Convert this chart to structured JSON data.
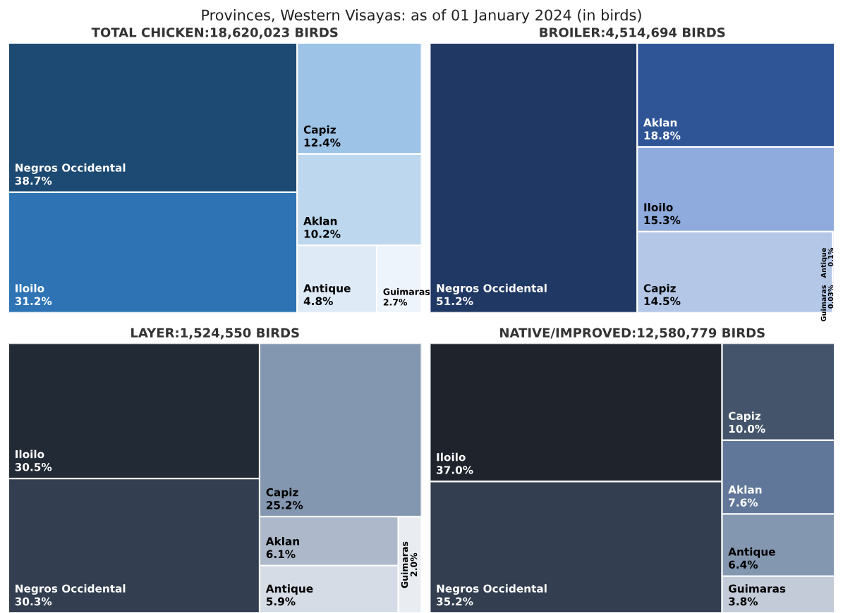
{
  "chart_data": [
    {
      "type": "other",
      "title": "TOTAL CHICKEN:18,620,023 BIRDS",
      "annotations": [
        "Provinces, Western Visayas: as of 01 January 2024 (in birds)"
      ],
      "categories": [
        "Negros Occidental",
        "Iloilo",
        "Capiz",
        "Aklan",
        "Antique",
        "Guimaras"
      ],
      "values": [
        38.7,
        31.2,
        12.4,
        10.2,
        4.8,
        2.7
      ],
      "colors": [
        "#1d4a72",
        "#2e74b5",
        "#9dc3e6",
        "#bdd7ee",
        "#deebf7",
        "#eef4fb"
      ],
      "value_labels": [
        "38.7%",
        "31.2%",
        "12.4%",
        "10.2%",
        "4.8%",
        "2.7%"
      ]
    },
    {
      "type": "other",
      "title": "BROILER:4,514,694 BIRDS",
      "categories": [
        "Negros Occidental",
        "Aklan",
        "Iloilo",
        "Capiz",
        "Antique",
        "Guimaras"
      ],
      "values": [
        51.2,
        18.8,
        15.3,
        14.5,
        0.1,
        0.03
      ],
      "colors": [
        "#203864",
        "#2f5597",
        "#8faadc",
        "#b4c7e7",
        "#dae3f3",
        "#e8edf7"
      ],
      "value_labels": [
        "51.2%",
        "18.8%",
        "15.3%",
        "14.5%",
        "0.1%",
        "0.03%"
      ]
    },
    {
      "type": "other",
      "title": "LAYER:1,524,550 BIRDS",
      "categories": [
        "Iloilo",
        "Negros Occidental",
        "Capiz",
        "Aklan",
        "Antique",
        "Guimaras"
      ],
      "values": [
        30.5,
        30.3,
        25.2,
        6.1,
        5.9,
        2.0
      ],
      "colors": [
        "#222a35",
        "#333f50",
        "#8497b0",
        "#adb9ca",
        "#d6dce5",
        "#e9edf2"
      ],
      "value_labels": [
        "30.5%",
        "30.3%",
        "25.2%",
        "6.1%",
        "5.9%",
        "2.0%"
      ]
    },
    {
      "type": "other",
      "title": "NATIVE/IMPROVED:12,580,779 BIRDS",
      "categories": [
        "Iloilo",
        "Negros Occidental",
        "Capiz",
        "Aklan",
        "Antique",
        "Guimaras"
      ],
      "values": [
        37.0,
        35.2,
        10.0,
        7.6,
        6.4,
        3.8
      ],
      "colors": [
        "#1e232c",
        "#333f50",
        "#44546a",
        "#61779a",
        "#8497b0",
        "#c3cbd8"
      ],
      "value_labels": [
        "37.0%",
        "35.2%",
        "10.0%",
        "7.6%",
        "6.4%",
        "3.8%"
      ]
    }
  ]
}
